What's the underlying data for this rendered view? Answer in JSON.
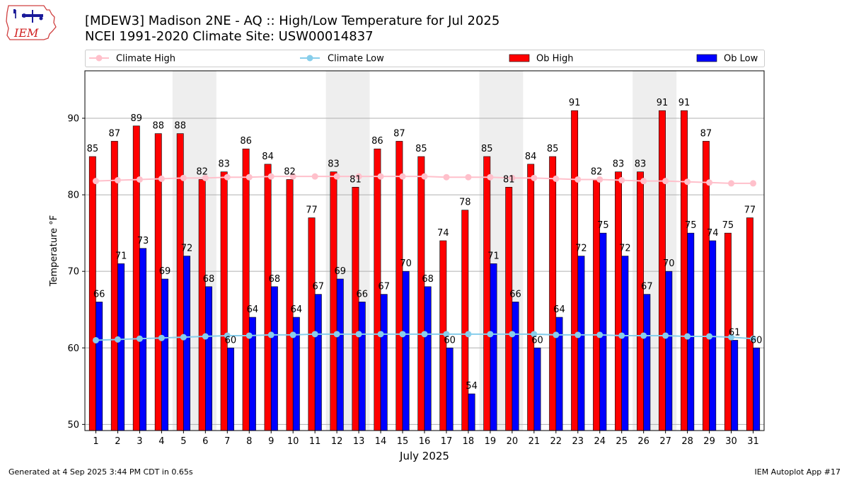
{
  "header": {
    "title_line1": "[MDEW3] Madison 2NE - AQ :: High/Low Temperature for Jul 2025",
    "title_line2": "NCEI 1991-2020 Climate Site: USW00014837",
    "logo_text": "IEM"
  },
  "footer": {
    "left": "Generated at 4 Sep 2025 3:44 PM CDT in 0.65s",
    "right": "IEM Autoplot App #17"
  },
  "colors": {
    "ob_high": "#ff0000",
    "ob_low": "#0000ff",
    "climate_high": "#ffc0cb",
    "climate_low": "#87ceeb",
    "weekend_shade": "#eeeeee",
    "grid": "#b0b0b0"
  },
  "chart_data": {
    "type": "bar",
    "xlabel": "July 2025",
    "ylabel": "Temperature °F",
    "ylim": [
      49.2,
      96.2
    ],
    "yticks": [
      50,
      60,
      70,
      80,
      90
    ],
    "grid": "horizontal",
    "legend_position": "top",
    "categories": [
      "1",
      "2",
      "3",
      "4",
      "5",
      "6",
      "7",
      "8",
      "9",
      "10",
      "11",
      "12",
      "13",
      "14",
      "15",
      "16",
      "17",
      "18",
      "19",
      "20",
      "21",
      "22",
      "23",
      "24",
      "25",
      "26",
      "27",
      "28",
      "29",
      "30",
      "31"
    ],
    "shaded_weekends": [
      [
        5,
        6
      ],
      [
        12,
        13
      ],
      [
        19,
        20
      ],
      [
        26,
        27
      ]
    ],
    "series": [
      {
        "name": "Climate High",
        "kind": "line",
        "color": "#ffc0cb",
        "values": [
          81.8,
          81.9,
          82.0,
          82.1,
          82.2,
          82.2,
          82.3,
          82.3,
          82.4,
          82.4,
          82.4,
          82.4,
          82.4,
          82.4,
          82.4,
          82.4,
          82.3,
          82.3,
          82.3,
          82.2,
          82.2,
          82.1,
          82.0,
          82.0,
          81.9,
          81.8,
          81.8,
          81.7,
          81.6,
          81.5,
          81.5
        ]
      },
      {
        "name": "Climate Low",
        "kind": "line",
        "color": "#87ceeb",
        "values": [
          61.0,
          61.1,
          61.2,
          61.3,
          61.4,
          61.5,
          61.6,
          61.6,
          61.7,
          61.7,
          61.8,
          61.8,
          61.8,
          61.8,
          61.8,
          61.8,
          61.8,
          61.8,
          61.8,
          61.8,
          61.8,
          61.7,
          61.7,
          61.7,
          61.6,
          61.6,
          61.6,
          61.5,
          61.5,
          61.4,
          61.2
        ]
      },
      {
        "name": "Ob High",
        "kind": "bar",
        "color": "#ff0000",
        "values": [
          85,
          87,
          89,
          88,
          88,
          82,
          83,
          86,
          84,
          82,
          77,
          83,
          81,
          86,
          87,
          85,
          74,
          78,
          85,
          81,
          84,
          85,
          91,
          82,
          83,
          83,
          91,
          91,
          87,
          75,
          77
        ]
      },
      {
        "name": "Ob Low",
        "kind": "bar",
        "color": "#0000ff",
        "values": [
          66,
          71,
          73,
          69,
          72,
          68,
          60,
          64,
          68,
          64,
          67,
          69,
          66,
          67,
          70,
          68,
          60,
          54,
          71,
          66,
          60,
          64,
          72,
          75,
          72,
          67,
          70,
          75,
          74,
          61,
          60
        ]
      }
    ]
  }
}
